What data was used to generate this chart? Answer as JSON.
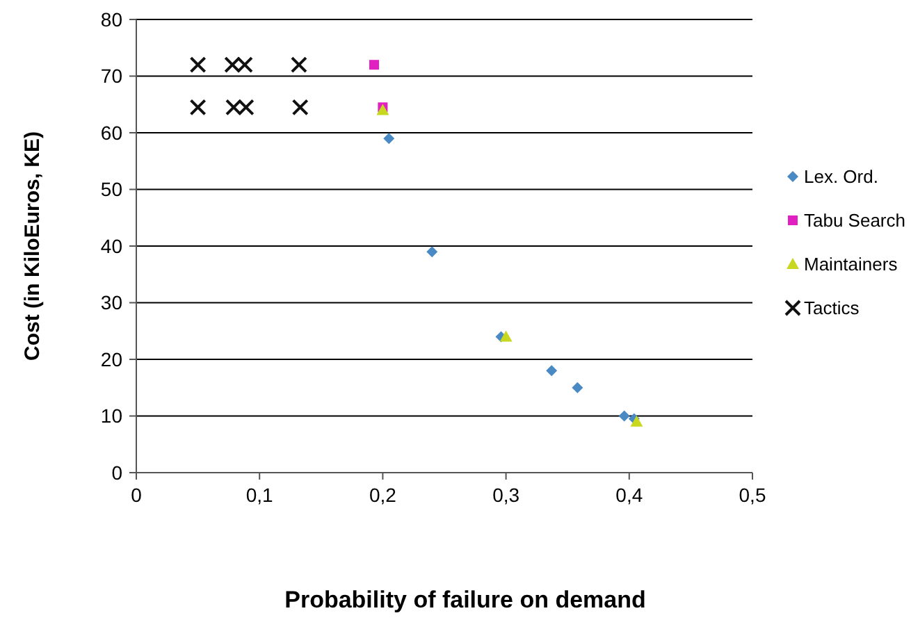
{
  "chart_data": {
    "type": "scatter",
    "xlabel": "Probability  of failure on demand",
    "ylabel": "Cost (in KiloEuros, KE)",
    "xlim": [
      0,
      0.5
    ],
    "ylim": [
      0,
      80
    ],
    "xticks": [
      {
        "value": 0,
        "label": "0"
      },
      {
        "value": 0.1,
        "label": "0,1"
      },
      {
        "value": 0.2,
        "label": "0,2"
      },
      {
        "value": 0.3,
        "label": "0,3"
      },
      {
        "value": 0.4,
        "label": "0,4"
      },
      {
        "value": 0.5,
        "label": "0,5"
      }
    ],
    "yticks": [
      0,
      10,
      20,
      30,
      40,
      50,
      60,
      70,
      80
    ],
    "grid": "y",
    "legend": "right",
    "series": [
      {
        "name": "Lex. Ord.",
        "color": "#4a8ac4",
        "marker": "diamond",
        "x": [
          0.205,
          0.24,
          0.296,
          0.337,
          0.358,
          0.396,
          0.404
        ],
        "values": [
          59,
          39,
          24,
          18,
          15,
          10,
          9.5
        ]
      },
      {
        "name": "Tabu Search",
        "color": "#e020c0",
        "marker": "square",
        "x": [
          0.193,
          0.2
        ],
        "values": [
          72,
          64.5
        ]
      },
      {
        "name": "Maintainers",
        "color": "#c8d820",
        "marker": "triangle",
        "x": [
          0.2,
          0.3,
          0.406
        ],
        "values": [
          64,
          24,
          9
        ]
      },
      {
        "name": "Tactics",
        "color": "#111111",
        "marker": "cross",
        "x": [
          0.05,
          0.078,
          0.088,
          0.132,
          0.05,
          0.079,
          0.089,
          0.133
        ],
        "values": [
          72,
          72,
          72,
          72,
          64.5,
          64.5,
          64.5,
          64.5
        ]
      }
    ]
  }
}
